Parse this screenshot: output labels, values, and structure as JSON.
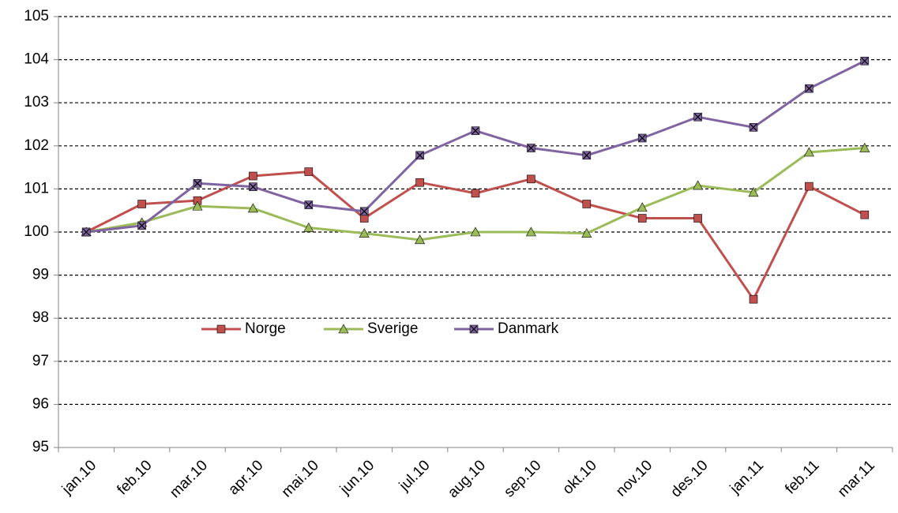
{
  "chart_data": {
    "type": "line",
    "categories": [
      "jan.10",
      "feb.10",
      "mar.10",
      "apr.10",
      "mai.10",
      "jun.10",
      "jul.10",
      "aug.10",
      "sep.10",
      "okt.10",
      "nov.10",
      "des.10",
      "jan.11",
      "feb.11",
      "mar.11"
    ],
    "series": [
      {
        "name": "Norge",
        "color": "#c0504d",
        "marker": "square",
        "values": [
          100,
          100.65,
          100.73,
          101.3,
          101.4,
          100.32,
          101.15,
          100.9,
          101.23,
          100.65,
          100.32,
          100.32,
          98.44,
          101.06,
          100.4
        ]
      },
      {
        "name": "Sverige",
        "color": "#9bbb59",
        "marker": "triangle",
        "values": [
          100,
          100.22,
          100.6,
          100.55,
          100.1,
          99.97,
          99.82,
          100.0,
          100.0,
          99.97,
          100.57,
          101.08,
          100.92,
          101.85,
          101.95
        ]
      },
      {
        "name": "Danmark",
        "color": "#8064a2",
        "marker": "x",
        "values": [
          100,
          100.15,
          101.13,
          101.05,
          100.63,
          100.48,
          101.78,
          102.35,
          101.95,
          101.78,
          102.18,
          102.67,
          102.43,
          103.33,
          103.97
        ]
      }
    ],
    "ylim": [
      95,
      105
    ],
    "yticks": [
      95,
      96,
      97,
      98,
      99,
      100,
      101,
      102,
      103,
      104,
      105
    ],
    "grid": true,
    "legend": "inside"
  }
}
